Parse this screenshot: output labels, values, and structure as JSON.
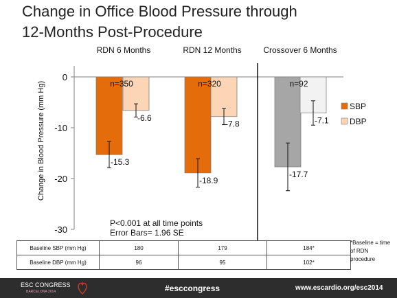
{
  "slide": {
    "title_line1": "Change in Office Blood Pressure through",
    "title_line2": "12-Months Post-Procedure",
    "note_line1": "P<0.001 at all time points",
    "note_line2": "Error Bars= 1.96 SE"
  },
  "chart_data": {
    "type": "bar",
    "ylabel": "Change in Blood Pressure (mm Hg)",
    "ylim": [
      -30,
      0
    ],
    "yticks": [
      0,
      -10,
      -20,
      -30
    ],
    "categories": [
      "RDN 6 Months",
      "RDN 12 Months",
      "Crossover 6 Months"
    ],
    "n_labels": [
      "n=350",
      "n=320",
      "n=92"
    ],
    "series": [
      {
        "name": "SBP",
        "values": [
          -15.3,
          -18.9,
          -17.7
        ],
        "value_labels": [
          "-15.3",
          "-18.9",
          "-17.7"
        ],
        "error_bars": [
          2.6,
          2.8,
          4.7
        ]
      },
      {
        "name": "DBP",
        "values": [
          -6.6,
          -7.8,
          -7.1
        ],
        "value_labels": [
          "-6.6",
          "-7.8",
          "-7.1"
        ],
        "error_bars": [
          1.3,
          1.6,
          2.4
        ]
      }
    ],
    "colors": {
      "sbp_rdn": "#e46c0a",
      "dbp_rdn": "#fbd5b5",
      "sbp_crossover": "#a6a6a6",
      "dbp_crossover": "#f2f2f2"
    },
    "legend": [
      "SBP",
      "DBP"
    ],
    "legend_position": "right",
    "grid": false
  },
  "baseline_table": {
    "rows": [
      {
        "label": "Baseline SBP (mm Hg)",
        "values": [
          "180",
          "179",
          "184*"
        ]
      },
      {
        "label": "Baseline DBP (mm Hg)",
        "values": [
          "96",
          "95",
          "102*"
        ]
      }
    ],
    "footnote": "*Baseline = time of RDN procedure"
  },
  "footer": {
    "congress": "ESC CONGRESS",
    "city": "BARCELONA 2014",
    "hashtag": "#esccongress",
    "url": "www.escardio.org/esc2014"
  }
}
